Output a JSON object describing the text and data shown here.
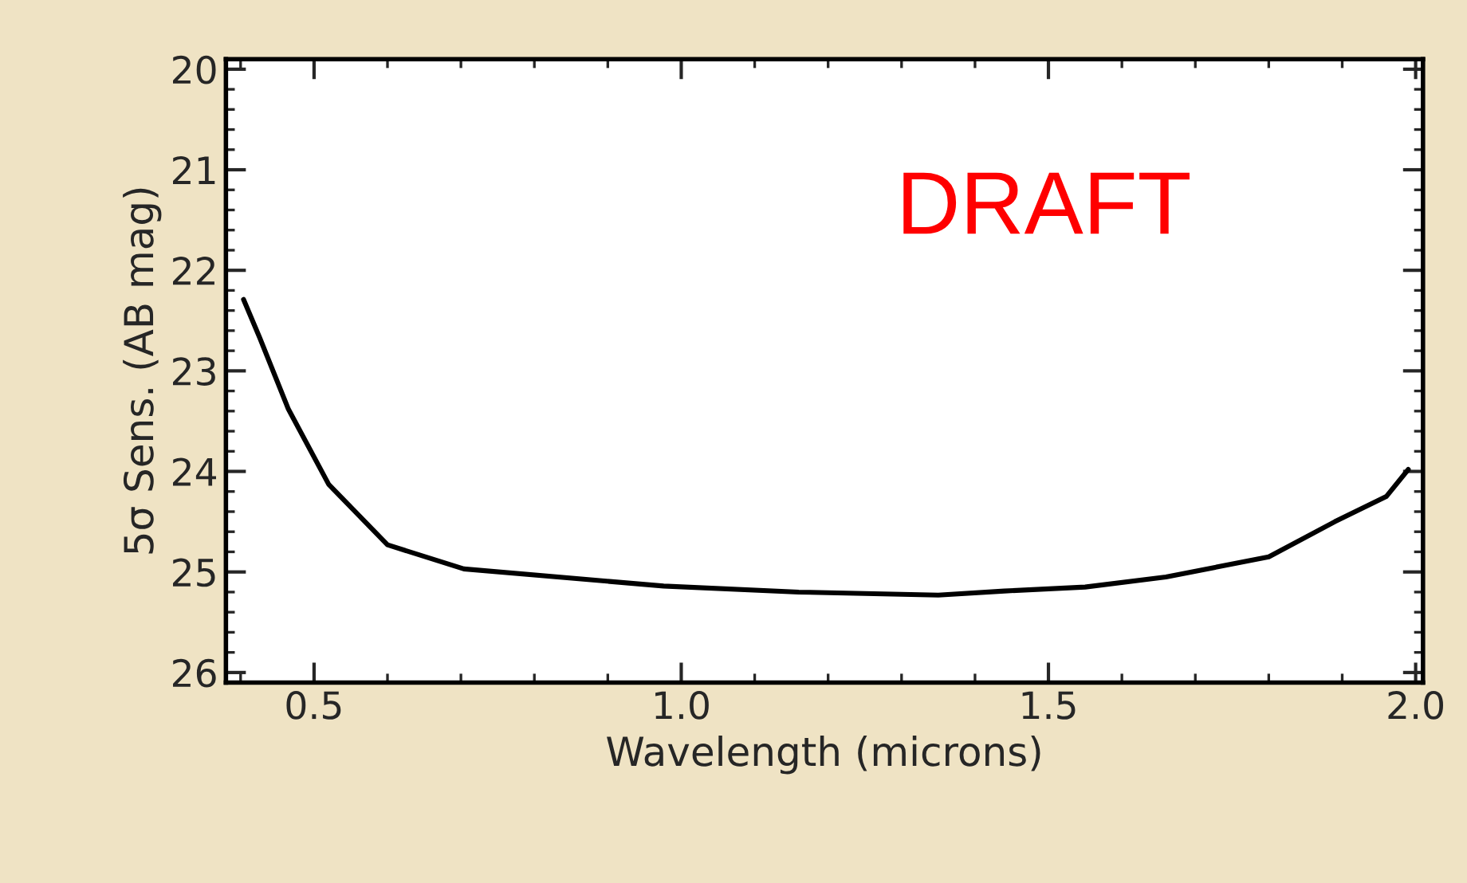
{
  "chart_data": {
    "type": "line",
    "xlabel": "Wavelength (microns)",
    "ylabel": "5σ Sens. (AB mag)",
    "annotations": [
      "DRAFT"
    ],
    "series": [
      {
        "color": "#000000",
        "x": [
          0.404,
          0.426,
          0.465,
          0.52,
          0.6,
          0.704,
          0.976,
          1.16,
          1.35,
          1.44,
          1.55,
          1.66,
          1.8,
          1.89,
          1.96,
          1.99
        ],
        "values": [
          22.29,
          22.67,
          23.38,
          24.13,
          24.73,
          24.97,
          25.14,
          25.2,
          25.23,
          25.19,
          25.15,
          25.05,
          24.85,
          24.5,
          24.25,
          23.98
        ]
      }
    ],
    "xlim": [
      0.38,
      2.01
    ],
    "ylim": [
      26.1,
      19.9
    ],
    "xticks": [
      {
        "value": 0.5,
        "label": "0.5"
      },
      {
        "value": 1,
        "label": "1.0"
      },
      {
        "value": 1.5,
        "label": "1.5"
      },
      {
        "value": 2,
        "label": "2.0"
      }
    ],
    "yticks": [
      20,
      21,
      22,
      23,
      24,
      25,
      26
    ],
    "grid": false,
    "legend": false,
    "marker": "none",
    "line_style": "solid"
  }
}
